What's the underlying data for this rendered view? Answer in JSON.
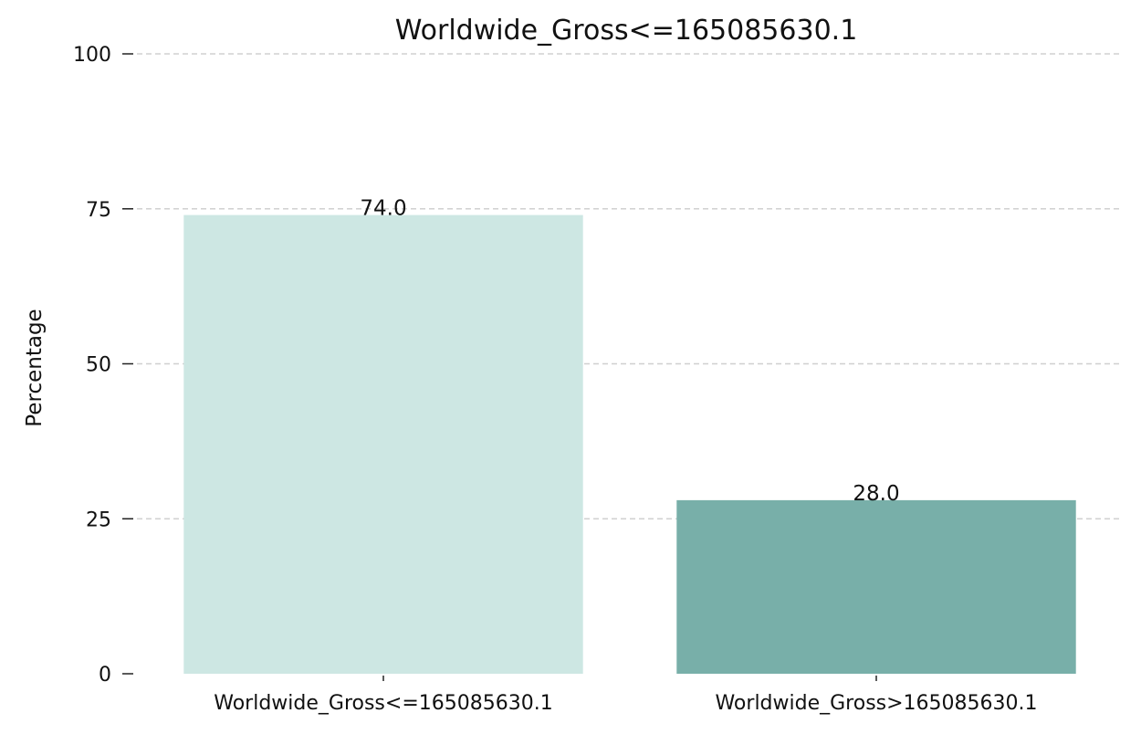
{
  "chart_data": {
    "type": "bar",
    "title": "Worldwide_Gross<=165085630.1",
    "xlabel": "",
    "ylabel": "Percentage",
    "categories": [
      "Worldwide_Gross<=165085630.1",
      "Worldwide_Gross>165085630.1"
    ],
    "values": [
      74.0,
      28.0
    ],
    "data_labels": [
      "74.0",
      "28.0"
    ],
    "ylim": [
      0,
      100
    ],
    "yticks": [
      0,
      25,
      50,
      75,
      100
    ],
    "ytick_labels": [
      "0",
      "25",
      "50",
      "75",
      "100"
    ],
    "grid": "y-dashed",
    "legend": "none",
    "colors": [
      "#cde7e3",
      "#78afa9"
    ]
  }
}
